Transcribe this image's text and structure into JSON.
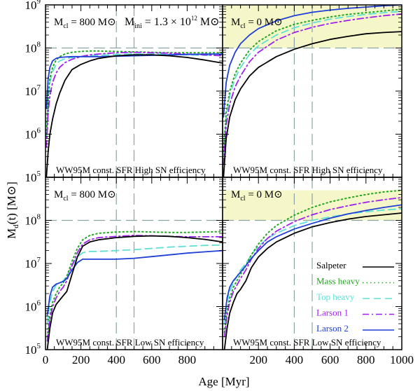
{
  "figure": {
    "ylabel_main": "M",
    "ylabel_sub": "d",
    "ylabel_tail": "(t) [M",
    "ylabel_close": "]",
    "xlabel": "Age [Myr]",
    "sun": "⊙"
  },
  "legend": [
    {
      "name": "Salpeter",
      "color": "#000000",
      "style": "solid"
    },
    {
      "name": "Mass heavy",
      "color": "#1fa81f",
      "style": "dotted"
    },
    {
      "name": "Top heavy",
      "color": "#5ee0d6",
      "style": "dashed"
    },
    {
      "name": "Larson 1",
      "color": "#a020f0",
      "style": "dashdot"
    },
    {
      "name": "Larson 2",
      "color": "#1f3fd6",
      "style": "solid"
    }
  ],
  "chart_data": [
    {
      "type": "line",
      "panel": "top-left",
      "label_mcl_prefix": "M",
      "label_mcl_sub": "cl",
      "label_mcl_value": "= 800 M",
      "extra_label_prefix": "M",
      "extra_label_sub": "ini",
      "extra_label_value": "= 1.3 × 10",
      "extra_label_exp": "12",
      "extra_label_tail": " M",
      "footer": "WW95M const. SFR   High SN efficiency",
      "xlim": [
        0,
        1000
      ],
      "ylim_log10": [
        5,
        9
      ],
      "ytick_labels": [
        "10",
        "10",
        "10",
        "10",
        "10"
      ],
      "ytick_exps": [
        "5",
        "6",
        "7",
        "8",
        "9"
      ],
      "xtick_labels": [
        "",
        "",
        "",
        "",
        "",
        ""
      ],
      "hline_log10": 8,
      "vlines": [
        400,
        500
      ],
      "band_log10": null,
      "series": [
        {
          "name": "Salpeter",
          "x": [
            5,
            15,
            25,
            40,
            60,
            80,
            110,
            150,
            200,
            250,
            300,
            400,
            500,
            600,
            700,
            800,
            900,
            1000
          ],
          "log10": [
            5.0,
            5.6,
            6.0,
            6.35,
            6.7,
            6.95,
            7.25,
            7.5,
            7.62,
            7.7,
            7.76,
            7.82,
            7.84,
            7.84,
            7.82,
            7.78,
            7.72,
            7.65
          ]
        },
        {
          "name": "Mass heavy",
          "x": [
            5,
            15,
            25,
            40,
            60,
            80,
            110,
            150,
            200,
            250,
            300,
            400,
            500,
            600,
            700,
            800,
            900,
            1000
          ],
          "log10": [
            6.0,
            6.9,
            7.3,
            7.55,
            7.72,
            7.8,
            7.86,
            7.9,
            7.92,
            7.93,
            7.93,
            7.92,
            7.91,
            7.9,
            7.89,
            7.89,
            7.89,
            7.89
          ]
        },
        {
          "name": "Top heavy",
          "x": [
            5,
            15,
            25,
            40,
            60,
            80,
            110,
            150,
            200,
            250,
            300,
            400,
            500,
            600,
            700,
            800,
            900,
            1000
          ],
          "log10": [
            5.9,
            6.8,
            7.2,
            7.45,
            7.62,
            7.7,
            7.75,
            7.78,
            7.8,
            7.82,
            7.83,
            7.85,
            7.86,
            7.86,
            7.85,
            7.84,
            7.83,
            7.83
          ]
        },
        {
          "name": "Larson 1",
          "x": [
            5,
            15,
            25,
            40,
            60,
            80,
            110,
            150,
            200,
            250,
            300,
            400,
            500,
            600,
            700,
            800,
            900,
            1000
          ],
          "log10": [
            5.7,
            6.5,
            6.9,
            7.2,
            7.42,
            7.55,
            7.66,
            7.74,
            7.8,
            7.84,
            7.86,
            7.89,
            7.9,
            7.89,
            7.88,
            7.86,
            7.84,
            7.82
          ]
        },
        {
          "name": "Larson 2",
          "x": [
            5,
            15,
            25,
            40,
            60,
            80,
            110,
            150,
            200,
            250,
            300,
            400,
            500,
            600,
            700,
            800,
            900,
            1000
          ],
          "log10": [
            6.6,
            7.3,
            7.55,
            7.7,
            7.76,
            7.78,
            7.79,
            7.8,
            7.8,
            7.8,
            7.8,
            7.81,
            7.82,
            7.83,
            7.84,
            7.85,
            7.86,
            7.86
          ]
        }
      ]
    },
    {
      "type": "line",
      "panel": "top-right",
      "label_mcl_prefix": "M",
      "label_mcl_sub": "cl",
      "label_mcl_value": "= 0 M",
      "footer": "WW95M const. SFR   High SN efficiency",
      "xlim": [
        0,
        1000
      ],
      "ylim_log10": [
        5,
        9
      ],
      "ytick_labels": [],
      "ytick_exps": [],
      "xtick_labels": [],
      "hline_log10": 8,
      "vlines": [
        400,
        500
      ],
      "band_log10": [
        8,
        9
      ],
      "series": [
        {
          "name": "Salpeter",
          "x": [
            5,
            20,
            40,
            70,
            100,
            150,
            200,
            300,
            400,
            500,
            600,
            700,
            800,
            900,
            1000
          ],
          "log10": [
            5.0,
            5.9,
            6.4,
            6.8,
            7.05,
            7.35,
            7.55,
            7.8,
            7.97,
            8.1,
            8.2,
            8.27,
            8.33,
            8.36,
            8.38
          ]
        },
        {
          "name": "Mass heavy",
          "x": [
            5,
            20,
            40,
            70,
            100,
            150,
            200,
            300,
            400,
            500,
            600,
            700,
            800,
            900,
            1000
          ],
          "log10": [
            5.6,
            6.5,
            7.0,
            7.4,
            7.65,
            7.95,
            8.15,
            8.4,
            8.55,
            8.64,
            8.72,
            8.78,
            8.82,
            8.86,
            8.9
          ]
        },
        {
          "name": "Top heavy",
          "x": [
            5,
            20,
            40,
            70,
            100,
            150,
            200,
            300,
            400,
            500,
            600,
            700,
            800,
            900,
            1000
          ],
          "log10": [
            5.5,
            6.4,
            6.9,
            7.3,
            7.55,
            7.85,
            8.05,
            8.3,
            8.47,
            8.58,
            8.67,
            8.73,
            8.78,
            8.82,
            8.85
          ]
        },
        {
          "name": "Larson 1",
          "x": [
            5,
            20,
            40,
            70,
            100,
            150,
            200,
            300,
            400,
            500,
            600,
            700,
            800,
            900,
            1000
          ],
          "log10": [
            5.3,
            6.2,
            6.7,
            7.1,
            7.35,
            7.68,
            7.9,
            8.18,
            8.36,
            8.48,
            8.57,
            8.64,
            8.7,
            8.75,
            8.79
          ]
        },
        {
          "name": "Larson 2",
          "x": [
            5,
            20,
            40,
            70,
            100,
            150,
            200,
            300,
            400,
            500,
            600,
            700,
            800,
            900,
            1000
          ],
          "log10": [
            6.4,
            7.2,
            7.6,
            7.9,
            8.1,
            8.3,
            8.45,
            8.63,
            8.75,
            8.83,
            8.88,
            8.92,
            8.95,
            8.98,
            9.0
          ]
        }
      ]
    },
    {
      "type": "line",
      "panel": "bottom-left",
      "label_mcl_prefix": "M",
      "label_mcl_sub": "cl",
      "label_mcl_value": "= 800 M",
      "footer": "WW95M const. SFR   Low SN efficiency",
      "xlim": [
        0,
        1000
      ],
      "ylim_log10": [
        5,
        9
      ],
      "ytick_labels": [
        "10",
        "10",
        "10",
        "10"
      ],
      "ytick_exps": [
        "5",
        "6",
        "7",
        "8"
      ],
      "xtick_labels": [
        "0",
        "200",
        "400",
        "600",
        "800",
        ""
      ],
      "hline_log10": 8,
      "vlines": [
        400,
        500
      ],
      "band_log10": null,
      "series": [
        {
          "name": "Salpeter",
          "x": [
            10,
            25,
            40,
            60,
            80,
            100,
            120,
            150,
            180,
            210,
            250,
            300,
            400,
            500,
            600,
            700,
            800,
            900,
            1000
          ],
          "log10": [
            5.0,
            5.5,
            5.85,
            6.05,
            6.15,
            6.25,
            6.35,
            6.75,
            7.15,
            7.4,
            7.5,
            7.55,
            7.6,
            7.63,
            7.64,
            7.63,
            7.6,
            7.56,
            7.5
          ]
        },
        {
          "name": "Mass heavy",
          "x": [
            10,
            25,
            40,
            60,
            80,
            100,
            120,
            150,
            180,
            210,
            250,
            300,
            400,
            500,
            600,
            700,
            800,
            900,
            1000
          ],
          "log10": [
            5.3,
            5.8,
            6.1,
            6.3,
            6.45,
            6.55,
            6.7,
            7.05,
            7.35,
            7.55,
            7.65,
            7.7,
            7.73,
            7.74,
            7.73,
            7.72,
            7.72,
            7.73,
            7.74
          ]
        },
        {
          "name": "Top heavy",
          "x": [
            10,
            25,
            40,
            60,
            80,
            100,
            120,
            150,
            180,
            210,
            250,
            300,
            400,
            500,
            600,
            700,
            800,
            900,
            1000
          ],
          "log10": [
            5.6,
            6.1,
            6.35,
            6.5,
            6.55,
            6.6,
            6.7,
            6.95,
            7.15,
            7.25,
            7.28,
            7.28,
            7.3,
            7.32,
            7.35,
            7.38,
            7.4,
            7.42,
            7.43
          ]
        },
        {
          "name": "Larson 1",
          "x": [
            10,
            25,
            40,
            60,
            80,
            100,
            120,
            150,
            180,
            210,
            250,
            300,
            400,
            500,
            600,
            700,
            800,
            900,
            1000
          ],
          "log10": [
            5.2,
            5.7,
            6.0,
            6.2,
            6.35,
            6.45,
            6.6,
            6.95,
            7.25,
            7.45,
            7.55,
            7.6,
            7.63,
            7.65,
            7.64,
            7.63,
            7.62,
            7.62,
            7.62
          ]
        },
        {
          "name": "Larson 2",
          "x": [
            10,
            25,
            40,
            60,
            80,
            100,
            120,
            150,
            180,
            210,
            250,
            300,
            400,
            500,
            600,
            700,
            800,
            900,
            1000
          ],
          "log10": [
            5.8,
            6.25,
            6.45,
            6.52,
            6.55,
            6.58,
            6.65,
            6.85,
            7.02,
            7.1,
            7.1,
            7.1,
            7.1,
            7.12,
            7.16,
            7.2,
            7.24,
            7.27,
            7.3
          ]
        }
      ]
    },
    {
      "type": "line",
      "panel": "bottom-right",
      "label_mcl_prefix": "M",
      "label_mcl_sub": "cl",
      "label_mcl_value": "= 0 M",
      "footer": "WW95M const. SFR   Low SN efficiency",
      "xlim": [
        0,
        1000
      ],
      "ylim_log10": [
        5,
        9
      ],
      "ytick_labels": [],
      "ytick_exps": [],
      "xtick_labels": [
        "",
        "200",
        "400",
        "600",
        "800",
        "1000"
      ],
      "hline_log10": 8,
      "vlines": [
        400,
        500
      ],
      "band_log10": [
        8,
        8.7
      ],
      "series": [
        {
          "name": "Salpeter",
          "x": [
            10,
            25,
            40,
            60,
            80,
            100,
            130,
            160,
            200,
            250,
            300,
            400,
            500,
            600,
            700,
            800,
            900,
            1000
          ],
          "log10": [
            5.0,
            5.5,
            5.85,
            6.1,
            6.3,
            6.4,
            6.6,
            6.9,
            7.15,
            7.35,
            7.5,
            7.7,
            7.85,
            7.95,
            8.03,
            8.09,
            8.13,
            8.17
          ]
        },
        {
          "name": "Mass heavy",
          "x": [
            10,
            25,
            40,
            60,
            80,
            100,
            130,
            160,
            200,
            250,
            300,
            400,
            500,
            600,
            700,
            800,
            900,
            1000
          ],
          "log10": [
            5.4,
            5.9,
            6.2,
            6.45,
            6.6,
            6.75,
            6.95,
            7.2,
            7.45,
            7.7,
            7.88,
            8.12,
            8.3,
            8.43,
            8.52,
            8.6,
            8.66,
            8.7
          ]
        },
        {
          "name": "Top heavy",
          "x": [
            10,
            25,
            40,
            60,
            80,
            100,
            130,
            160,
            200,
            250,
            300,
            400,
            500,
            600,
            700,
            800,
            900,
            1000
          ],
          "log10": [
            5.6,
            6.1,
            6.35,
            6.55,
            6.7,
            6.85,
            7.0,
            7.2,
            7.4,
            7.58,
            7.7,
            7.88,
            8.0,
            8.08,
            8.15,
            8.2,
            8.24,
            8.27
          ]
        },
        {
          "name": "Larson 1",
          "x": [
            10,
            25,
            40,
            60,
            80,
            100,
            130,
            160,
            200,
            250,
            300,
            400,
            500,
            600,
            700,
            800,
            900,
            1000
          ],
          "log10": [
            5.3,
            5.8,
            6.1,
            6.35,
            6.5,
            6.65,
            6.85,
            7.1,
            7.35,
            7.58,
            7.75,
            7.97,
            8.13,
            8.25,
            8.34,
            8.42,
            8.48,
            8.53
          ]
        },
        {
          "name": "Larson 2",
          "x": [
            10,
            25,
            40,
            60,
            80,
            100,
            130,
            160,
            200,
            250,
            300,
            400,
            500,
            600,
            700,
            800,
            900,
            1000
          ],
          "log10": [
            5.7,
            6.2,
            6.45,
            6.6,
            6.7,
            6.8,
            6.95,
            7.12,
            7.3,
            7.5,
            7.62,
            7.8,
            7.93,
            8.05,
            8.15,
            8.23,
            8.3,
            8.36
          ]
        }
      ]
    }
  ]
}
